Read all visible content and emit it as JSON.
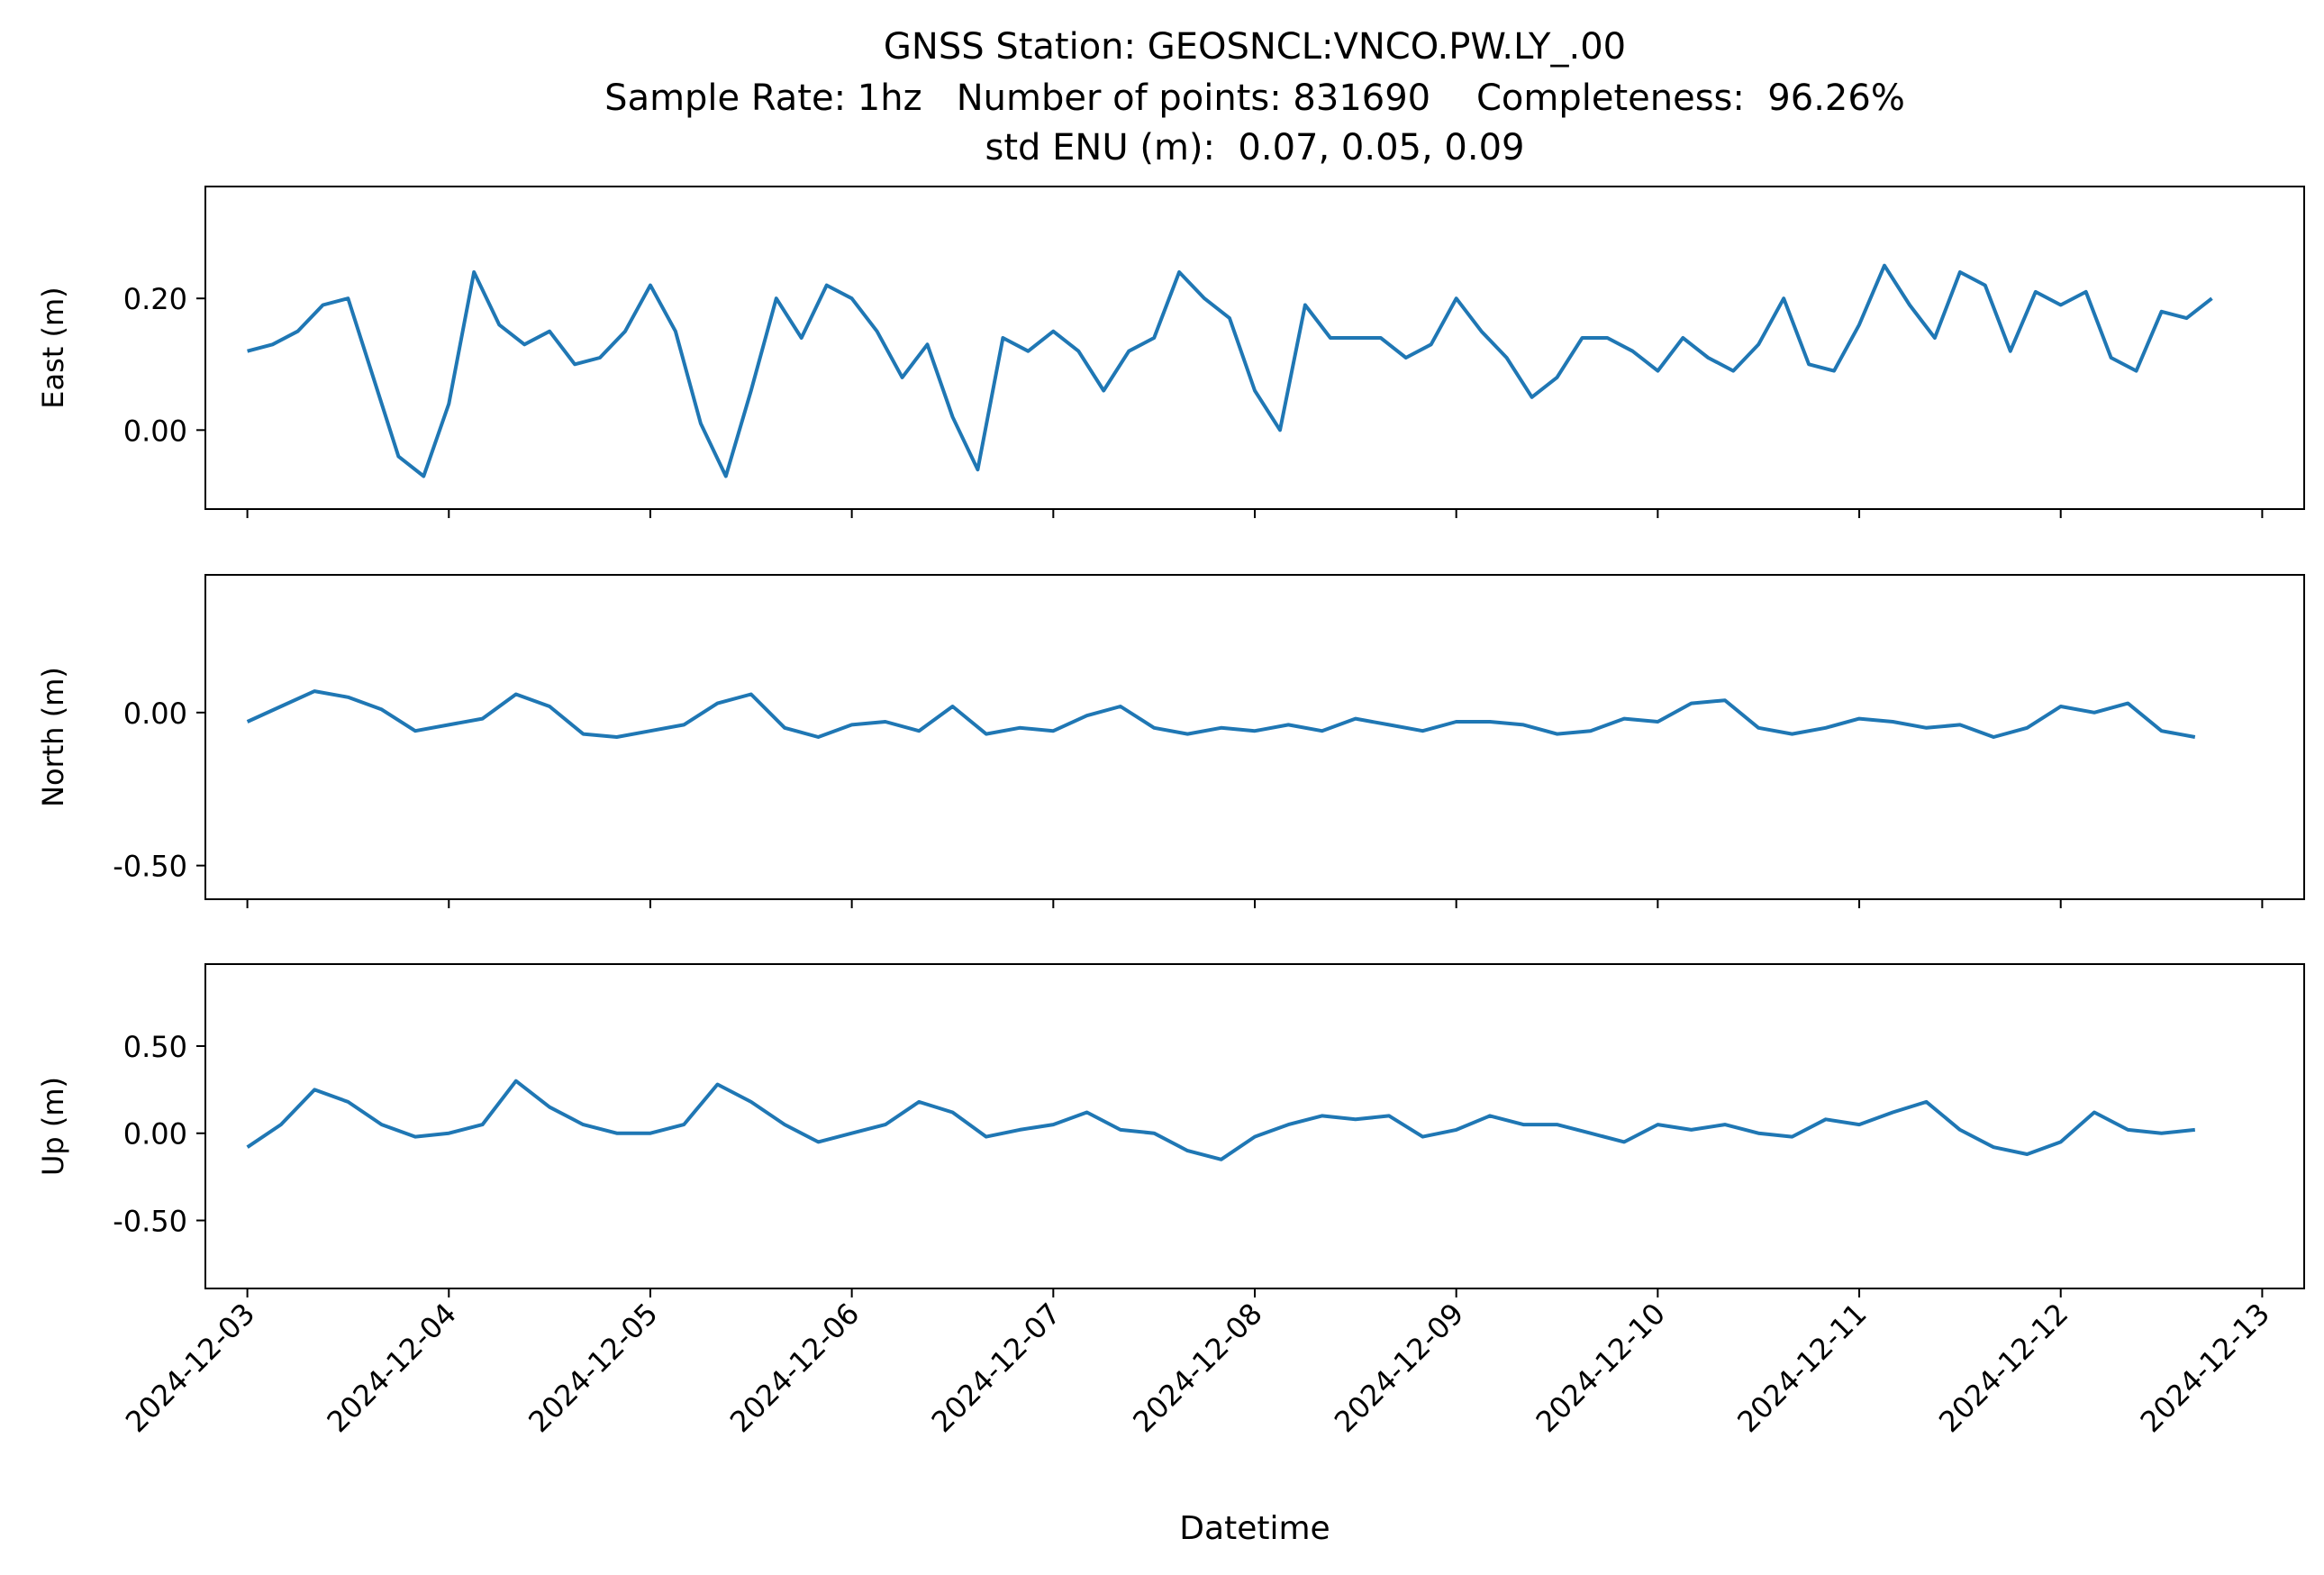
{
  "figure": {
    "title_lines": [
      "GNSS Station: GEOSNCL:VNCO.PW.LY_.00",
      "Sample Rate: 1hz   Number of points: 831690    Completeness:  96.26%",
      "std ENU (m):  0.07, 0.05, 0.09"
    ],
    "xlabel": "Datetime",
    "line_color": "#1f77b4"
  },
  "chart_data": [
    {
      "type": "line",
      "panel": "east",
      "ylabel": "East (m)",
      "ylim": [
        -0.12,
        0.37
      ],
      "yticks": [
        {
          "value": 0.0,
          "label": "0.00"
        },
        {
          "value": 0.2,
          "label": "0.20"
        }
      ],
      "xlim": [
        "2024-12-02T19:00",
        "2024-12-13T05:00"
      ],
      "xticks": [],
      "series": [
        {
          "x": [
            "2024-12-03T00:00",
            "2024-12-03T03:00",
            "2024-12-03T06:00",
            "2024-12-03T09:00",
            "2024-12-03T12:00",
            "2024-12-03T15:00",
            "2024-12-03T18:00",
            "2024-12-03T21:00",
            "2024-12-04T00:00",
            "2024-12-04T03:00",
            "2024-12-04T06:00",
            "2024-12-04T09:00",
            "2024-12-04T12:00",
            "2024-12-04T15:00",
            "2024-12-04T18:00",
            "2024-12-04T21:00",
            "2024-12-05T00:00",
            "2024-12-05T03:00",
            "2024-12-05T06:00",
            "2024-12-05T09:00",
            "2024-12-05T12:00",
            "2024-12-05T15:00",
            "2024-12-05T18:00",
            "2024-12-05T21:00",
            "2024-12-06T00:00",
            "2024-12-06T03:00",
            "2024-12-06T06:00",
            "2024-12-06T09:00",
            "2024-12-06T12:00",
            "2024-12-06T15:00",
            "2024-12-06T18:00",
            "2024-12-06T21:00",
            "2024-12-07T00:00",
            "2024-12-07T03:00",
            "2024-12-07T06:00",
            "2024-12-07T09:00",
            "2024-12-07T12:00",
            "2024-12-07T15:00",
            "2024-12-07T18:00",
            "2024-12-07T21:00",
            "2024-12-08T00:00",
            "2024-12-08T03:00",
            "2024-12-08T06:00",
            "2024-12-08T09:00",
            "2024-12-08T12:00",
            "2024-12-08T15:00",
            "2024-12-08T18:00",
            "2024-12-08T21:00",
            "2024-12-09T00:00",
            "2024-12-09T03:00",
            "2024-12-09T06:00",
            "2024-12-09T09:00",
            "2024-12-09T12:00",
            "2024-12-09T15:00",
            "2024-12-09T18:00",
            "2024-12-09T21:00",
            "2024-12-10T00:00",
            "2024-12-10T03:00",
            "2024-12-10T06:00",
            "2024-12-10T09:00",
            "2024-12-10T12:00",
            "2024-12-10T15:00",
            "2024-12-10T18:00",
            "2024-12-10T21:00",
            "2024-12-11T00:00",
            "2024-12-11T03:00",
            "2024-12-11T06:00",
            "2024-12-11T09:00",
            "2024-12-11T12:00",
            "2024-12-11T15:00",
            "2024-12-11T18:00",
            "2024-12-11T21:00",
            "2024-12-12T00:00",
            "2024-12-12T03:00",
            "2024-12-12T06:00",
            "2024-12-12T09:00",
            "2024-12-12T12:00",
            "2024-12-12T15:00",
            "2024-12-12T18:00"
          ],
          "y": [
            0.12,
            0.13,
            0.15,
            0.19,
            0.2,
            0.08,
            -0.04,
            -0.07,
            0.04,
            0.24,
            0.16,
            0.13,
            0.15,
            0.1,
            0.11,
            0.15,
            0.22,
            0.15,
            0.01,
            -0.07,
            0.06,
            0.2,
            0.14,
            0.22,
            0.2,
            0.15,
            0.08,
            0.13,
            0.02,
            -0.06,
            0.14,
            0.12,
            0.15,
            0.12,
            0.06,
            0.12,
            0.14,
            0.24,
            0.2,
            0.17,
            0.06,
            0.0,
            0.19,
            0.14,
            0.14,
            0.14,
            0.11,
            0.13,
            0.2,
            0.15,
            0.11,
            0.05,
            0.08,
            0.14,
            0.14,
            0.12,
            0.09,
            0.14,
            0.11,
            0.09,
            0.13,
            0.2,
            0.1,
            0.09,
            0.16,
            0.25,
            0.19,
            0.14,
            0.24,
            0.22,
            0.12,
            0.21,
            0.19,
            0.21,
            0.11,
            0.09,
            0.18,
            0.17,
            0.2
          ]
        }
      ]
    },
    {
      "type": "line",
      "panel": "north",
      "ylabel": "North (m)",
      "ylim": [
        -0.61,
        0.45
      ],
      "yticks": [
        {
          "value": 0.0,
          "label": "0.00"
        },
        {
          "value": -0.5,
          "label": "-0.50"
        }
      ],
      "xlim": [
        "2024-12-02T19:00",
        "2024-12-13T05:00"
      ],
      "xticks": [],
      "series": [
        {
          "x": [
            "2024-12-03T00:00",
            "2024-12-03T04:00",
            "2024-12-03T08:00",
            "2024-12-03T12:00",
            "2024-12-03T16:00",
            "2024-12-03T20:00",
            "2024-12-04T00:00",
            "2024-12-04T04:00",
            "2024-12-04T08:00",
            "2024-12-04T12:00",
            "2024-12-04T16:00",
            "2024-12-04T20:00",
            "2024-12-05T00:00",
            "2024-12-05T04:00",
            "2024-12-05T08:00",
            "2024-12-05T12:00",
            "2024-12-05T16:00",
            "2024-12-05T20:00",
            "2024-12-06T00:00",
            "2024-12-06T04:00",
            "2024-12-06T08:00",
            "2024-12-06T12:00",
            "2024-12-06T16:00",
            "2024-12-06T20:00",
            "2024-12-07T00:00",
            "2024-12-07T04:00",
            "2024-12-07T08:00",
            "2024-12-07T12:00",
            "2024-12-07T16:00",
            "2024-12-07T20:00",
            "2024-12-08T00:00",
            "2024-12-08T04:00",
            "2024-12-08T08:00",
            "2024-12-08T12:00",
            "2024-12-08T16:00",
            "2024-12-08T20:00",
            "2024-12-09T00:00",
            "2024-12-09T04:00",
            "2024-12-09T08:00",
            "2024-12-09T12:00",
            "2024-12-09T16:00",
            "2024-12-09T20:00",
            "2024-12-10T00:00",
            "2024-12-10T04:00",
            "2024-12-10T08:00",
            "2024-12-10T12:00",
            "2024-12-10T16:00",
            "2024-12-10T20:00",
            "2024-12-11T00:00",
            "2024-12-11T04:00",
            "2024-12-11T08:00",
            "2024-12-11T12:00",
            "2024-12-11T16:00",
            "2024-12-11T20:00",
            "2024-12-12T00:00",
            "2024-12-12T04:00",
            "2024-12-12T08:00",
            "2024-12-12T12:00",
            "2024-12-12T16:00"
          ],
          "y": [
            -0.03,
            0.02,
            0.07,
            0.05,
            0.01,
            -0.06,
            -0.04,
            -0.02,
            0.06,
            0.02,
            -0.07,
            -0.08,
            -0.06,
            -0.04,
            0.03,
            0.06,
            -0.05,
            -0.08,
            -0.04,
            -0.03,
            -0.06,
            0.02,
            -0.07,
            -0.05,
            -0.06,
            -0.01,
            0.02,
            -0.05,
            -0.07,
            -0.05,
            -0.06,
            -0.04,
            -0.06,
            -0.02,
            -0.04,
            -0.06,
            -0.03,
            -0.03,
            -0.04,
            -0.07,
            -0.06,
            -0.02,
            -0.03,
            0.03,
            0.04,
            -0.05,
            -0.07,
            -0.05,
            -0.02,
            -0.03,
            -0.05,
            -0.04,
            -0.08,
            -0.05,
            0.02,
            0.0,
            0.03,
            -0.06,
            -0.08
          ]
        }
      ]
    },
    {
      "type": "line",
      "panel": "up",
      "ylabel": "Up (m)",
      "ylim": [
        -0.89,
        0.97
      ],
      "yticks": [
        {
          "value": 0.5,
          "label": "0.50"
        },
        {
          "value": 0.0,
          "label": "0.00"
        },
        {
          "value": -0.5,
          "label": "-0.50"
        }
      ],
      "xlim": [
        "2024-12-02T19:00",
        "2024-12-13T05:00"
      ],
      "xlabel": "Datetime",
      "xticks": [
        "2024-12-03",
        "2024-12-04",
        "2024-12-05",
        "2024-12-06",
        "2024-12-07",
        "2024-12-08",
        "2024-12-09",
        "2024-12-10",
        "2024-12-11",
        "2024-12-12",
        "2024-12-13"
      ],
      "series": [
        {
          "x": [
            "2024-12-03T00:00",
            "2024-12-03T04:00",
            "2024-12-03T08:00",
            "2024-12-03T12:00",
            "2024-12-03T16:00",
            "2024-12-03T20:00",
            "2024-12-04T00:00",
            "2024-12-04T04:00",
            "2024-12-04T08:00",
            "2024-12-04T12:00",
            "2024-12-04T16:00",
            "2024-12-04T20:00",
            "2024-12-05T00:00",
            "2024-12-05T04:00",
            "2024-12-05T08:00",
            "2024-12-05T12:00",
            "2024-12-05T16:00",
            "2024-12-05T20:00",
            "2024-12-06T00:00",
            "2024-12-06T04:00",
            "2024-12-06T08:00",
            "2024-12-06T12:00",
            "2024-12-06T16:00",
            "2024-12-06T20:00",
            "2024-12-07T00:00",
            "2024-12-07T04:00",
            "2024-12-07T08:00",
            "2024-12-07T12:00",
            "2024-12-07T16:00",
            "2024-12-07T20:00",
            "2024-12-08T00:00",
            "2024-12-08T04:00",
            "2024-12-08T08:00",
            "2024-12-08T12:00",
            "2024-12-08T16:00",
            "2024-12-08T20:00",
            "2024-12-09T00:00",
            "2024-12-09T04:00",
            "2024-12-09T08:00",
            "2024-12-09T12:00",
            "2024-12-09T16:00",
            "2024-12-09T20:00",
            "2024-12-10T00:00",
            "2024-12-10T04:00",
            "2024-12-10T08:00",
            "2024-12-10T12:00",
            "2024-12-10T16:00",
            "2024-12-10T20:00",
            "2024-12-11T00:00",
            "2024-12-11T04:00",
            "2024-12-11T08:00",
            "2024-12-11T12:00",
            "2024-12-11T16:00",
            "2024-12-11T20:00",
            "2024-12-12T00:00",
            "2024-12-12T04:00",
            "2024-12-12T08:00",
            "2024-12-12T12:00",
            "2024-12-12T16:00"
          ],
          "y": [
            -0.08,
            0.05,
            0.25,
            0.18,
            0.05,
            -0.02,
            0.0,
            0.05,
            0.3,
            0.15,
            0.05,
            0.0,
            0.0,
            0.05,
            0.28,
            0.18,
            0.05,
            -0.05,
            0.0,
            0.05,
            0.18,
            0.12,
            -0.02,
            0.02,
            0.05,
            0.12,
            0.02,
            0.0,
            -0.1,
            -0.15,
            -0.02,
            0.05,
            0.1,
            0.08,
            0.1,
            -0.02,
            0.02,
            0.1,
            0.05,
            0.05,
            0.0,
            -0.05,
            0.05,
            0.02,
            0.05,
            0.0,
            -0.02,
            0.08,
            0.05,
            0.12,
            0.18,
            0.02,
            -0.08,
            -0.12,
            -0.05,
            0.12,
            0.02,
            0.0,
            0.02
          ]
        }
      ]
    }
  ]
}
